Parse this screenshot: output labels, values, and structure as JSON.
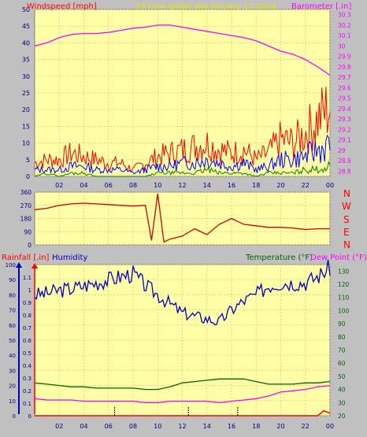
{
  "colors": {
    "background": "#c0c0c0",
    "plot_bg": "#ffffa8",
    "grid": "#e0c080",
    "wind": "#ff0000",
    "gust": "#ff2020",
    "avg_wind": "#0000ff",
    "calm": "#008000",
    "barometer": "#ff00ff",
    "direction": "#d00000",
    "humidity": "#0000c0",
    "temperature": "#006400",
    "dewpoint": "#ff00ff",
    "rainfall": "#ff0000",
    "title": "#e8e800"
  },
  "header": {
    "windspeed_label": "Windspeed [mph]",
    "title": "24 hour graph day   January 12 2024",
    "barometer_label": "Barometer [.in]"
  },
  "lower_header": {
    "rainfall_label": "Rainfall [.in]",
    "humidity_label": "Humidity",
    "temperature_label": "Temperature (°F)",
    "dewpoint_label": "Dew Point (°F)"
  },
  "compass": [
    "N",
    "W",
    "S",
    "E",
    "N"
  ],
  "chart_data": [
    {
      "type": "line",
      "panel": "wind",
      "x_ticks": [
        "02",
        "04",
        "06",
        "08",
        "10",
        "12",
        "14",
        "16",
        "18",
        "20",
        "22",
        "00"
      ],
      "xlim": [
        0,
        24
      ],
      "left_axis": {
        "label": "Windspeed [mph]",
        "ylim": [
          0,
          50
        ],
        "ticks": [
          0,
          5,
          10,
          15,
          20,
          25,
          30,
          35,
          40,
          45,
          50
        ]
      },
      "right_axis": {
        "label": "Barometer [.in]",
        "ylim": [
          28.75,
          30.35
        ],
        "ticks": [
          "28.8",
          "28.9",
          "29",
          "29.1",
          "29.2",
          "29.3",
          "29.4",
          "29.5",
          "29.6",
          "29.7",
          "29.8",
          "29.9",
          "30",
          "30.1",
          "30.2",
          "30.3"
        ]
      },
      "barometer": {
        "x": [
          0,
          1,
          2,
          3,
          4,
          5,
          6,
          7,
          8,
          9,
          10,
          11,
          12,
          13,
          14,
          15,
          16,
          17,
          18,
          19,
          20,
          21,
          22,
          23,
          24
        ],
        "y": [
          30.0,
          30.03,
          30.08,
          30.11,
          30.12,
          30.12,
          30.13,
          30.15,
          30.17,
          30.18,
          30.2,
          30.2,
          30.18,
          30.16,
          30.14,
          30.12,
          30.1,
          30.08,
          30.05,
          30.0,
          29.95,
          29.92,
          29.87,
          29.8,
          29.72
        ]
      },
      "wind_gust": {
        "x": [
          0,
          1,
          2,
          3,
          4,
          5,
          6,
          7,
          8,
          9,
          10,
          11,
          12,
          13,
          14,
          15,
          16,
          17,
          18,
          19,
          20,
          21,
          22,
          23,
          24
        ],
        "y": [
          4,
          5,
          5,
          7,
          6,
          5,
          4,
          4,
          2,
          4,
          6,
          7,
          8,
          9,
          10,
          8,
          7,
          8,
          5,
          7,
          11,
          10,
          13,
          17,
          21
        ]
      },
      "wind_avg": {
        "x": [
          0,
          1,
          2,
          3,
          4,
          5,
          6,
          7,
          8,
          9,
          10,
          11,
          12,
          13,
          14,
          15,
          16,
          17,
          18,
          19,
          20,
          21,
          22,
          23,
          24
        ],
        "y": [
          2,
          2,
          2,
          3,
          3,
          2,
          2,
          2,
          1,
          2,
          3,
          3,
          4,
          4,
          5,
          4,
          3,
          4,
          2,
          3,
          5,
          5,
          6,
          8,
          9
        ]
      },
      "wind_calm": {
        "x": [
          0,
          1,
          2,
          3,
          4,
          5,
          6,
          7,
          8,
          9,
          10,
          11,
          12,
          13,
          14,
          15,
          16,
          17,
          18,
          19,
          20,
          21,
          22,
          23,
          24
        ],
        "y": [
          0,
          1,
          0,
          1,
          1,
          0,
          0,
          0,
          0,
          0,
          1,
          1,
          1,
          1,
          2,
          1,
          1,
          1,
          0,
          1,
          1,
          1,
          2,
          2,
          3
        ]
      }
    },
    {
      "type": "line",
      "panel": "direction",
      "xlim": [
        0,
        24
      ],
      "ylim": [
        0,
        360
      ],
      "y_ticks": [
        0,
        90,
        180,
        270,
        360
      ],
      "x": [
        0,
        1,
        2,
        3,
        4,
        5,
        6,
        7,
        8,
        9,
        9.5,
        10,
        10.5,
        11,
        12,
        13,
        14,
        15,
        16,
        17,
        18,
        19,
        20,
        21,
        22,
        23,
        24
      ],
      "y": [
        240,
        250,
        270,
        280,
        285,
        280,
        275,
        270,
        265,
        270,
        30,
        350,
        20,
        40,
        60,
        110,
        70,
        140,
        180,
        140,
        130,
        120,
        120,
        115,
        105,
        110,
        110
      ]
    },
    {
      "type": "line",
      "panel": "climate",
      "x_ticks": [
        "02",
        "04",
        "06",
        "08",
        "10",
        "12",
        "14",
        "16",
        "18",
        "20",
        "22",
        "00"
      ],
      "xlim": [
        0,
        24
      ],
      "left_axes": [
        {
          "label": "Rainfall [.in]",
          "ylim": [
            0,
            1.2
          ],
          "ticks": [
            "0",
            "0.1",
            "0.2",
            "0.3",
            "0.4",
            "0.5",
            "0.6",
            "0.7",
            "0.8",
            "0.9",
            "1",
            "1.1"
          ]
        },
        {
          "label": "Humidity",
          "ylim": [
            0,
            100
          ],
          "ticks": [
            0,
            10,
            20,
            30,
            40,
            50,
            60,
            70,
            80,
            90,
            100
          ]
        }
      ],
      "right_axis": {
        "label": "Temperature (°F)",
        "ylim": [
          20,
          135
        ],
        "ticks": [
          20,
          30,
          40,
          50,
          60,
          70,
          80,
          90,
          100,
          110,
          120,
          130
        ]
      },
      "humidity": {
        "x": [
          0,
          1,
          2,
          3,
          4,
          5,
          6,
          7,
          8,
          9,
          10,
          11,
          12,
          13,
          14,
          15,
          16,
          17,
          18,
          19,
          20,
          21,
          22,
          23,
          24
        ],
        "y": [
          80,
          81,
          83,
          84,
          86,
          88,
          90,
          92,
          94,
          86,
          80,
          74,
          68,
          66,
          64,
          62,
          70,
          76,
          80,
          86,
          88,
          88,
          88,
          92,
          98
        ]
      },
      "temperature": {
        "x": [
          0,
          1,
          2,
          3,
          4,
          5,
          6,
          7,
          8,
          9,
          10,
          11,
          12,
          13,
          14,
          15,
          16,
          17,
          18,
          19,
          20,
          21,
          22,
          23,
          24
        ],
        "y": [
          45,
          44,
          43,
          42,
          42,
          41,
          41,
          41,
          41,
          40,
          40,
          42,
          45,
          46,
          47,
          48,
          48,
          48,
          46,
          44,
          44,
          44,
          45,
          45,
          46
        ]
      },
      "dewpoint": {
        "x": [
          0,
          1,
          2,
          3,
          4,
          5,
          6,
          7,
          8,
          9,
          10,
          11,
          12,
          13,
          14,
          15,
          16,
          17,
          18,
          19,
          20,
          21,
          22,
          23,
          24
        ],
        "y": [
          33,
          32,
          32,
          32,
          31,
          31,
          31,
          31,
          31,
          30,
          30,
          31,
          31,
          31,
          31,
          30,
          31,
          32,
          33,
          35,
          38,
          39,
          40,
          42,
          43
        ]
      },
      "rainfall": {
        "x": [
          0,
          1,
          2,
          3,
          4,
          5,
          6,
          7,
          8,
          9,
          10,
          11,
          12,
          13,
          14,
          15,
          16,
          17,
          18,
          19,
          20,
          21,
          22,
          23,
          23.5,
          24
        ],
        "y": [
          0,
          0,
          0,
          0,
          0,
          0,
          0,
          0,
          0,
          0,
          0,
          0,
          0,
          0,
          0,
          0,
          0,
          0,
          0,
          0,
          0,
          0,
          0,
          0,
          0.04,
          0.02
        ]
      }
    }
  ]
}
